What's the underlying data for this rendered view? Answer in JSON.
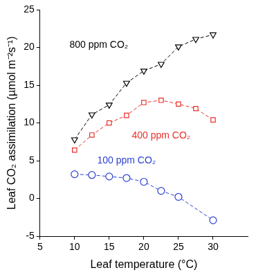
{
  "chart_data": {
    "type": "line",
    "x_label": "Leaf temperature (°C)",
    "y_label": "Leaf CO₂ assimilation (µmol m⁻²s⁻¹)",
    "xlim": [
      5,
      35
    ],
    "xticks": [
      5,
      10,
      15,
      20,
      25,
      30
    ],
    "ylim": [
      -5,
      25
    ],
    "yticks": [
      -5,
      0,
      5,
      10,
      15,
      20,
      25
    ],
    "grid": false,
    "series": [
      {
        "name": "800 ppm CO₂",
        "color": "#000000",
        "marker": "triangle_down",
        "line_style": "dashed",
        "x": [
          10,
          12.5,
          15,
          17.5,
          20,
          22.5,
          25,
          27.5,
          30
        ],
        "values": [
          7.8,
          11.1,
          12.4,
          15.3,
          16.9,
          17.8,
          20.1,
          21.1,
          21.7
        ]
      },
      {
        "name": "400 ppm CO₂",
        "color": "#e8302a",
        "marker": "square",
        "line_style": "dashed",
        "x": [
          10,
          12.5,
          15,
          17.5,
          20,
          22.5,
          25,
          27.5,
          30
        ],
        "values": [
          6.4,
          8.4,
          10.0,
          11.0,
          12.7,
          13.0,
          12.5,
          11.9,
          10.4
        ]
      },
      {
        "name": "100 ppm CO₂",
        "color": "#2a3fd0",
        "marker": "circle",
        "line_style": "dashed",
        "x": [
          10,
          12.5,
          15,
          17.5,
          20,
          22.5,
          25,
          30
        ],
        "values": [
          3.2,
          3.1,
          2.9,
          2.7,
          2.2,
          1.0,
          0.2,
          -2.9
        ]
      }
    ]
  }
}
